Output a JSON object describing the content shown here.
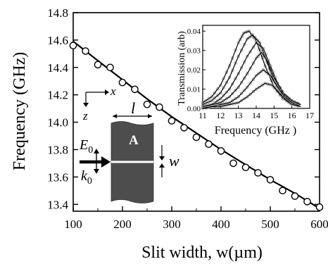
{
  "chart_data": [
    {
      "type": "scatter",
      "title": "",
      "xlabel": "Slit width, w(µm)",
      "ylabel": "Frequency (GHz)",
      "xlim": [
        100,
        600
      ],
      "ylim": [
        13.35,
        14.8
      ],
      "xticks": [
        "100",
        "200",
        "300",
        "400",
        "500",
        "600"
      ],
      "yticks": [
        "13.4",
        "13.6",
        "13.8",
        "14.0",
        "14.2",
        "14.4",
        "14.6",
        "14.8"
      ],
      "grid": false,
      "series": [
        {
          "marker": "open-circle",
          "x": [
            100,
            125,
            150,
            175,
            200,
            225,
            250,
            275,
            300,
            325,
            350,
            375,
            400,
            425,
            450,
            475,
            500,
            525,
            550,
            575,
            600
          ],
          "y": [
            14.56,
            14.52,
            14.42,
            14.4,
            14.29,
            14.24,
            14.13,
            14.11,
            14.01,
            13.96,
            13.89,
            13.84,
            13.79,
            13.7,
            13.67,
            13.63,
            13.58,
            13.5,
            13.46,
            13.42,
            13.38
          ]
        },
        {
          "marker": "line",
          "x": [
            100,
            150,
            200,
            250,
            300,
            350,
            400,
            450,
            500,
            550,
            600
          ],
          "y": [
            14.59,
            14.45,
            14.31,
            14.17,
            14.04,
            13.92,
            13.8,
            13.69,
            13.58,
            13.48,
            13.37
          ]
        }
      ],
      "schematic": {
        "axis_x_label": "x",
        "axis_z_label": "z",
        "length_label": "l",
        "block_label": "A",
        "width_label": "w",
        "field_label": "E",
        "field_sub": "0",
        "wave_label": "k",
        "wave_sub": "0"
      }
    },
    {
      "type": "line",
      "title": "",
      "xlabel": "Frequency (GHz )",
      "ylabel": "Transmission (arb)",
      "xlim": [
        11,
        17
      ],
      "ylim": [
        0,
        0.043
      ],
      "xticks": [
        "11",
        "12",
        "13",
        "14",
        "15",
        "16",
        "17"
      ],
      "yticks": [
        "0.00",
        "0.01",
        "0.02",
        "0.03",
        "0.04"
      ],
      "grid": false,
      "series": [
        {
          "x": [
            11,
            11.5,
            12,
            12.5,
            13,
            13.3,
            13.6,
            14,
            14.5,
            15,
            15.5,
            16,
            16.5
          ],
          "y": [
            0.003,
            0.006,
            0.012,
            0.022,
            0.034,
            0.039,
            0.04,
            0.035,
            0.022,
            0.011,
            0.005,
            0.003,
            0.002
          ]
        },
        {
          "x": [
            11,
            11.5,
            12,
            12.5,
            13,
            13.5,
            13.8,
            14.2,
            14.6,
            15,
            15.5,
            16,
            16.5
          ],
          "y": [
            0.002,
            0.004,
            0.008,
            0.016,
            0.027,
            0.036,
            0.038,
            0.034,
            0.024,
            0.014,
            0.007,
            0.004,
            0.002
          ]
        },
        {
          "x": [
            11,
            11.5,
            12,
            12.5,
            13,
            13.5,
            14,
            14.4,
            14.8,
            15.2,
            15.6,
            16,
            16.5
          ],
          "y": [
            0.001,
            0.002,
            0.005,
            0.01,
            0.018,
            0.027,
            0.034,
            0.031,
            0.022,
            0.013,
            0.007,
            0.004,
            0.002
          ]
        },
        {
          "x": [
            11,
            11.5,
            12,
            12.5,
            13,
            13.5,
            14,
            14.3,
            14.6,
            15,
            15.5,
            16,
            16.5
          ],
          "y": [
            0.001,
            0.002,
            0.003,
            0.006,
            0.011,
            0.018,
            0.026,
            0.029,
            0.025,
            0.016,
            0.008,
            0.004,
            0.002
          ]
        },
        {
          "x": [
            11,
            11.5,
            12,
            12.5,
            13,
            13.5,
            14,
            14.4,
            14.8,
            15.2,
            15.6,
            16,
            16.5
          ],
          "y": [
            0.0,
            0.001,
            0.002,
            0.003,
            0.006,
            0.011,
            0.017,
            0.02,
            0.017,
            0.011,
            0.006,
            0.003,
            0.001
          ]
        },
        {
          "x": [
            11,
            11.5,
            12,
            12.5,
            13,
            13.5,
            14,
            14.5,
            14.9,
            15.3,
            15.7,
            16,
            16.5
          ],
          "y": [
            0.0,
            0.001,
            0.001,
            0.002,
            0.003,
            0.006,
            0.01,
            0.013,
            0.012,
            0.008,
            0.004,
            0.002,
            0.001
          ]
        }
      ]
    }
  ]
}
